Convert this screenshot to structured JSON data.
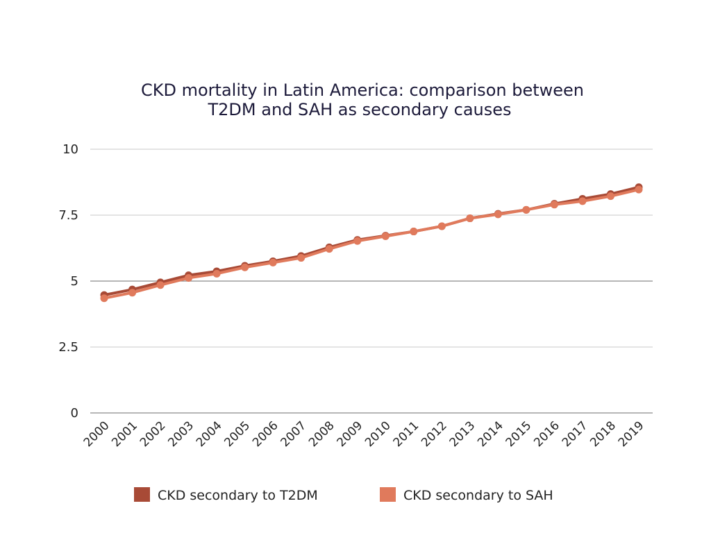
{
  "chart_data": {
    "type": "line",
    "title_lines": [
      "CKD mortality in Latin America: comparison between",
      "T2DM and SAH as secondary causes"
    ],
    "xlabel": "",
    "ylabel": "",
    "ylim": [
      0,
      10
    ],
    "yticks": [
      "0",
      "2.5",
      "5",
      "7.5",
      "10"
    ],
    "y_tick_values": [
      0,
      2.5,
      5,
      7.5,
      10
    ],
    "grid": true,
    "legend_position": "bottom",
    "categories": [
      "2000",
      "2001",
      "2002",
      "2003",
      "2004",
      "2005",
      "2006",
      "2007",
      "2008",
      "2009",
      "2010",
      "2011",
      "2012",
      "2013",
      "2014",
      "2015",
      "2016",
      "2017",
      "2018",
      "2019"
    ],
    "series": [
      {
        "name": "CKD secondary to T2DM",
        "color": "#a84a36",
        "values": [
          4.47,
          4.68,
          4.95,
          5.22,
          5.37,
          5.58,
          5.75,
          5.95,
          6.28,
          6.56,
          6.72,
          6.88,
          7.08,
          7.38,
          7.55,
          7.7,
          7.93,
          8.12,
          8.3,
          8.56
        ]
      },
      {
        "name": "CKD secondary to SAH",
        "color": "#e07a5c",
        "values": [
          4.35,
          4.56,
          4.85,
          5.12,
          5.28,
          5.52,
          5.7,
          5.88,
          6.22,
          6.52,
          6.7,
          6.88,
          7.08,
          7.38,
          7.53,
          7.7,
          7.9,
          8.03,
          8.22,
          8.47
        ]
      }
    ]
  }
}
